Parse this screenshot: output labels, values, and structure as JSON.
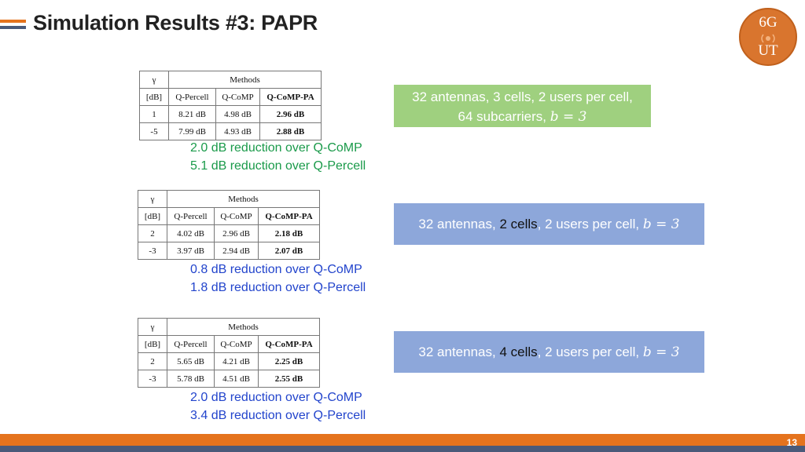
{
  "title": "Simulation Results #3: PAPR",
  "logo": {
    "top": "6G",
    "bottom": "UT"
  },
  "page_number": "13",
  "table_headers": {
    "gamma": "γ",
    "unit": "[dB]",
    "methods": "Methods",
    "col1": "Q-Percell",
    "col2": "Q-CoMP",
    "col3": "Q-CoMP-PA"
  },
  "tables": [
    {
      "rows": [
        {
          "gamma": "1",
          "q_percell": "8.21 dB",
          "q_comp": "4.98 dB",
          "q_comp_pa": "2.96 dB"
        },
        {
          "gamma": "-5",
          "q_percell": "7.99 dB",
          "q_comp": "4.93 dB",
          "q_comp_pa": "2.88 dB"
        }
      ],
      "notes": [
        "2.0 dB reduction over Q-CoMP",
        "5.1 dB reduction over Q-Percell"
      ],
      "config": {
        "line1": "32 antennas, 3 cells, 2 users per cell,",
        "line2": "64 subcarriers, ",
        "math": "b = 3"
      }
    },
    {
      "rows": [
        {
          "gamma": "2",
          "q_percell": "4.02 dB",
          "q_comp": "2.96 dB",
          "q_comp_pa": "2.18 dB"
        },
        {
          "gamma": "-3",
          "q_percell": "3.97 dB",
          "q_comp": "2.94 dB",
          "q_comp_pa": "2.07 dB"
        }
      ],
      "notes": [
        "0.8 dB reduction over Q-CoMP",
        "1.8 dB reduction over Q-Percell"
      ],
      "config": {
        "pre": "32 antennas, ",
        "highlight": "2 cells",
        "post": ", 2 users per cell, ",
        "math": "b = 3"
      }
    },
    {
      "rows": [
        {
          "gamma": "2",
          "q_percell": "5.65 dB",
          "q_comp": "4.21 dB",
          "q_comp_pa": "2.25 dB"
        },
        {
          "gamma": "-3",
          "q_percell": "5.78 dB",
          "q_comp": "4.51 dB",
          "q_comp_pa": "2.55 dB"
        }
      ],
      "notes": [
        "2.0 dB reduction over Q-CoMP",
        "3.4 dB reduction over Q-Percell"
      ],
      "config": {
        "pre": "32 antennas, ",
        "highlight": "4 cells",
        "post": ", 2 users per cell, ",
        "math": "b = 3"
      }
    }
  ],
  "colors": {
    "accent_orange": "#e5731d",
    "dark_bar": "#4a5a7a",
    "green_box": "#9fd07f",
    "blue_box": "#8da7da",
    "green_text": "#1a9a4a",
    "blue_text": "#2244cc"
  }
}
